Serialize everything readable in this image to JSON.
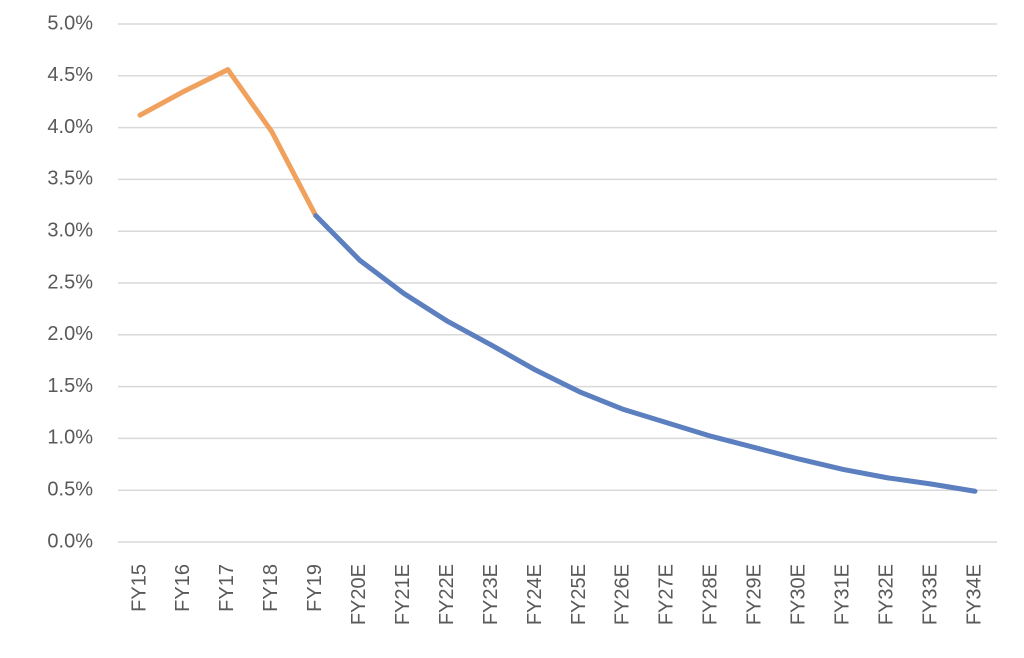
{
  "chart_data": {
    "type": "line",
    "categories": [
      "FY15",
      "FY16",
      "FY17",
      "FY18",
      "FY19",
      "FY20E",
      "FY21E",
      "FY22E",
      "FY23E",
      "FY24E",
      "FY25E",
      "FY26E",
      "FY27E",
      "FY28E",
      "FY29E",
      "FY30E",
      "FY31E",
      "FY32E",
      "FY33E",
      "FY34E"
    ],
    "series": [
      {
        "color": "#f0a15e",
        "values": [
          4.12,
          4.35,
          4.56,
          3.96,
          3.15,
          null,
          null,
          null,
          null,
          null,
          null,
          null,
          null,
          null,
          null,
          null,
          null,
          null,
          null,
          null
        ]
      },
      {
        "color": "#5b7fbf",
        "values": [
          null,
          null,
          null,
          null,
          3.15,
          2.72,
          2.4,
          2.13,
          1.9,
          1.66,
          1.45,
          1.28,
          1.15,
          1.02,
          0.91,
          0.8,
          0.7,
          0.62,
          0.56,
          0.49
        ]
      }
    ],
    "ylim": [
      0,
      5
    ],
    "yticks": [
      {
        "value": 0,
        "label": "0.0%"
      },
      {
        "value": 0.5,
        "label": "0.5%"
      },
      {
        "value": 1,
        "label": "1.0%"
      },
      {
        "value": 1.5,
        "label": "1.5%"
      },
      {
        "value": 2,
        "label": "2.0%"
      },
      {
        "value": 2.5,
        "label": "2.5%"
      },
      {
        "value": 3,
        "label": "3.0%"
      },
      {
        "value": 3.5,
        "label": "3.5%"
      },
      {
        "value": 4,
        "label": "4.0%"
      },
      {
        "value": 4.5,
        "label": "4.5%"
      },
      {
        "value": 5,
        "label": "5.0%"
      }
    ],
    "grid": true
  }
}
